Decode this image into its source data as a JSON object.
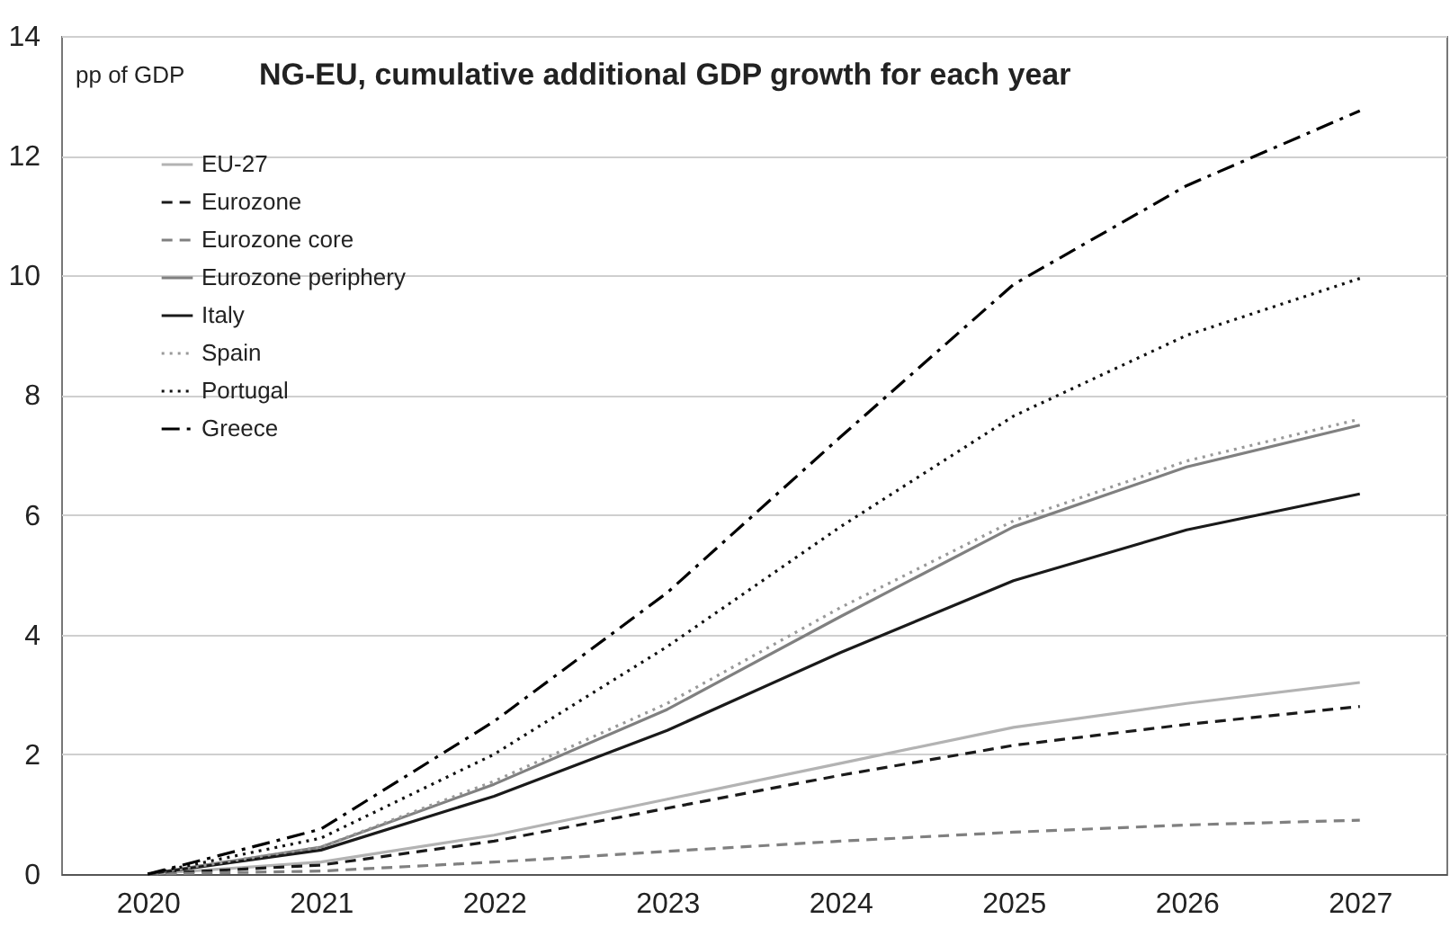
{
  "chart_data": {
    "type": "line",
    "title": "NG-EU, cumulative additional GDP growth for each year",
    "ylabel": "pp of GDP",
    "categories": [
      "2020",
      "2021",
      "2022",
      "2023",
      "2024",
      "2025",
      "2026",
      "2027"
    ],
    "ylim": [
      0,
      14
    ],
    "yticks": [
      0,
      2,
      4,
      6,
      8,
      10,
      12,
      14
    ],
    "grid": "y",
    "legend": "top left",
    "marker": "none",
    "series": [
      {
        "name": "EU-27",
        "color": "#b3b3b3",
        "line_style": "solid",
        "values": [
          0,
          0.2,
          0.65,
          1.25,
          1.85,
          2.45,
          2.85,
          3.2
        ]
      },
      {
        "name": "Eurozone",
        "color": "#1a1a1a",
        "line_style": "dashed",
        "values": [
          0,
          0.15,
          0.55,
          1.1,
          1.65,
          2.15,
          2.5,
          2.8
        ]
      },
      {
        "name": "Eurozone core",
        "color": "#808080",
        "line_style": "dashed",
        "values": [
          0,
          0.05,
          0.2,
          0.38,
          0.55,
          0.7,
          0.82,
          0.9
        ]
      },
      {
        "name": "Eurozone periphery",
        "color": "#808080",
        "line_style": "solid",
        "values": [
          0,
          0.45,
          1.5,
          2.75,
          4.3,
          5.8,
          6.8,
          7.5
        ]
      },
      {
        "name": "Italy",
        "color": "#1a1a1a",
        "line_style": "solid",
        "values": [
          0,
          0.4,
          1.3,
          2.4,
          3.7,
          4.9,
          5.75,
          6.35
        ]
      },
      {
        "name": "Spain",
        "color": "#999999",
        "line_style": "dotted",
        "values": [
          0,
          0.45,
          1.55,
          2.85,
          4.45,
          5.9,
          6.9,
          7.6
        ]
      },
      {
        "name": "Portugal",
        "color": "#111111",
        "line_style": "dotted",
        "values": [
          0,
          0.6,
          2.0,
          3.8,
          5.8,
          7.65,
          9.0,
          9.95
        ]
      },
      {
        "name": "Greece",
        "color": "#000000",
        "line_style": "dashdot",
        "values": [
          0,
          0.75,
          2.55,
          4.7,
          7.3,
          9.85,
          11.5,
          12.75
        ]
      }
    ]
  }
}
